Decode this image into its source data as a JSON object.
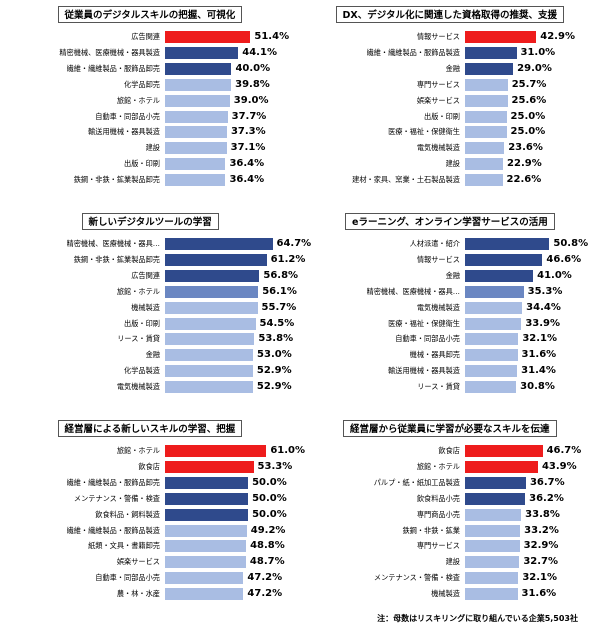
{
  "colors": {
    "red": "#ee1c1c",
    "dark": "#2f4a8c",
    "mid": "#6b87c2",
    "light": "#a9bde3"
  },
  "note": "注：母数はリスキリングに取り組んでいる企業5,503社",
  "chart_data": [
    {
      "type": "bar",
      "title": "従業員のデジタルスキルの把握、可視化",
      "categories": [
        "広告関連",
        "精密機械、医療機械・器具製造",
        "繊維・繊維製品・服飾品卸売",
        "化学品卸売",
        "旅館・ホテル",
        "自動車・同部品小売",
        "輸送用機械・器具製造",
        "建設",
        "出版・印刷",
        "鉄鋼・非鉄・鉱業製品卸売"
      ],
      "values": [
        51.4,
        44.1,
        40.0,
        39.8,
        39.0,
        37.7,
        37.3,
        37.1,
        36.4,
        36.4
      ],
      "value_labels": [
        "51.4%",
        "44.1%",
        "40.0%",
        "39.8%",
        "39.0%",
        "37.7%",
        "37.3%",
        "37.1%",
        "36.4%",
        "36.4%"
      ],
      "bar_colors": [
        "red",
        "dark",
        "dark",
        "light",
        "light",
        "light",
        "light",
        "light",
        "light",
        "light"
      ]
    },
    {
      "type": "bar",
      "title": "DX、デジタル化に関連した資格取得の推奨、支援",
      "categories": [
        "情報サービス",
        "繊維・繊維製品・服飾品製造",
        "金融",
        "専門サービス",
        "娯楽サービス",
        "出版・印刷",
        "医療・福祉・保健衛生",
        "電気機械製造",
        "建設",
        "建材・家具、窯業・土石製品製造"
      ],
      "values": [
        42.9,
        31.0,
        29.0,
        25.7,
        25.6,
        25.0,
        25.0,
        23.6,
        22.9,
        22.6
      ],
      "value_labels": [
        "42.9%",
        "31.0%",
        "29.0%",
        "25.7%",
        "25.6%",
        "25.0%",
        "25.0%",
        "23.6%",
        "22.9%",
        "22.6%"
      ],
      "bar_colors": [
        "red",
        "dark",
        "dark",
        "light",
        "light",
        "light",
        "light",
        "light",
        "light",
        "light"
      ]
    },
    {
      "type": "bar",
      "title": "新しいデジタルツールの学習",
      "categories": [
        "精密機械、医療機械・器具…",
        "鉄鋼・非鉄・鉱業製品卸売",
        "広告関連",
        "旅館・ホテル",
        "機械製造",
        "出版・印刷",
        "リース・賃貸",
        "金融",
        "化学品製造",
        "電気機械製造"
      ],
      "values": [
        64.7,
        61.2,
        56.8,
        56.1,
        55.7,
        54.5,
        53.8,
        53.0,
        52.9,
        52.9
      ],
      "value_labels": [
        "64.7%",
        "61.2%",
        "56.8%",
        "56.1%",
        "55.7%",
        "54.5%",
        "53.8%",
        "53.0%",
        "52.9%",
        "52.9%"
      ],
      "bar_colors": [
        "dark",
        "dark",
        "dark",
        "mid",
        "light",
        "light",
        "light",
        "light",
        "light",
        "light"
      ]
    },
    {
      "type": "bar",
      "title": "eラーニング、オンライン学習サービスの活用",
      "categories": [
        "人材派遣・紹介",
        "情報サービス",
        "金融",
        "精密機械、医療機械・器具…",
        "電気機械製造",
        "医療・福祉・保健衛生",
        "自動車・同部品小売",
        "機械・器具卸売",
        "輸送用機械・器具製造",
        "リース・賃貸"
      ],
      "values": [
        50.8,
        46.6,
        41.0,
        35.3,
        34.4,
        33.9,
        32.1,
        31.6,
        31.4,
        30.8
      ],
      "value_labels": [
        "50.8%",
        "46.6%",
        "41.0%",
        "35.3%",
        "34.4%",
        "33.9%",
        "32.1%",
        "31.6%",
        "31.4%",
        "30.8%"
      ],
      "bar_colors": [
        "dark",
        "dark",
        "dark",
        "mid",
        "light",
        "light",
        "light",
        "light",
        "light",
        "light"
      ]
    },
    {
      "type": "bar",
      "title": "経営層による新しいスキルの学習、把握",
      "categories": [
        "旅館・ホテル",
        "飲食店",
        "繊維・繊維製品・服飾品卸売",
        "メンテナンス・警備・検査",
        "飲食料品・飼料製造",
        "繊維・繊維製品・服飾品製造",
        "紙類・文具・書籍卸売",
        "娯楽サービス",
        "自動車・同部品小売",
        "農・林・水産"
      ],
      "values": [
        61.0,
        53.3,
        50.0,
        50.0,
        50.0,
        49.2,
        48.8,
        48.7,
        47.2,
        47.2
      ],
      "value_labels": [
        "61.0%",
        "53.3%",
        "50.0%",
        "50.0%",
        "50.0%",
        "49.2%",
        "48.8%",
        "48.7%",
        "47.2%",
        "47.2%"
      ],
      "bar_colors": [
        "red",
        "red",
        "dark",
        "dark",
        "dark",
        "light",
        "light",
        "light",
        "light",
        "light"
      ]
    },
    {
      "type": "bar",
      "title": "経営層から従業員に学習が必要なスキルを伝達",
      "categories": [
        "飲食店",
        "旅館・ホテル",
        "パルプ・紙・紙加工品製造",
        "飲食料品小売",
        "専門商品小売",
        "鉄鋼・非鉄・鉱業",
        "専門サービス",
        "建設",
        "メンテナンス・警備・検査",
        "機械製造"
      ],
      "values": [
        46.7,
        43.9,
        36.7,
        36.2,
        33.8,
        33.2,
        32.9,
        32.7,
        32.1,
        31.6
      ],
      "value_labels": [
        "46.7%",
        "43.9%",
        "36.7%",
        "36.2%",
        "33.8%",
        "33.2%",
        "32.9%",
        "32.7%",
        "32.1%",
        "31.6%"
      ],
      "bar_colors": [
        "red",
        "red",
        "dark",
        "dark",
        "light",
        "light",
        "light",
        "light",
        "light",
        "light"
      ]
    }
  ]
}
